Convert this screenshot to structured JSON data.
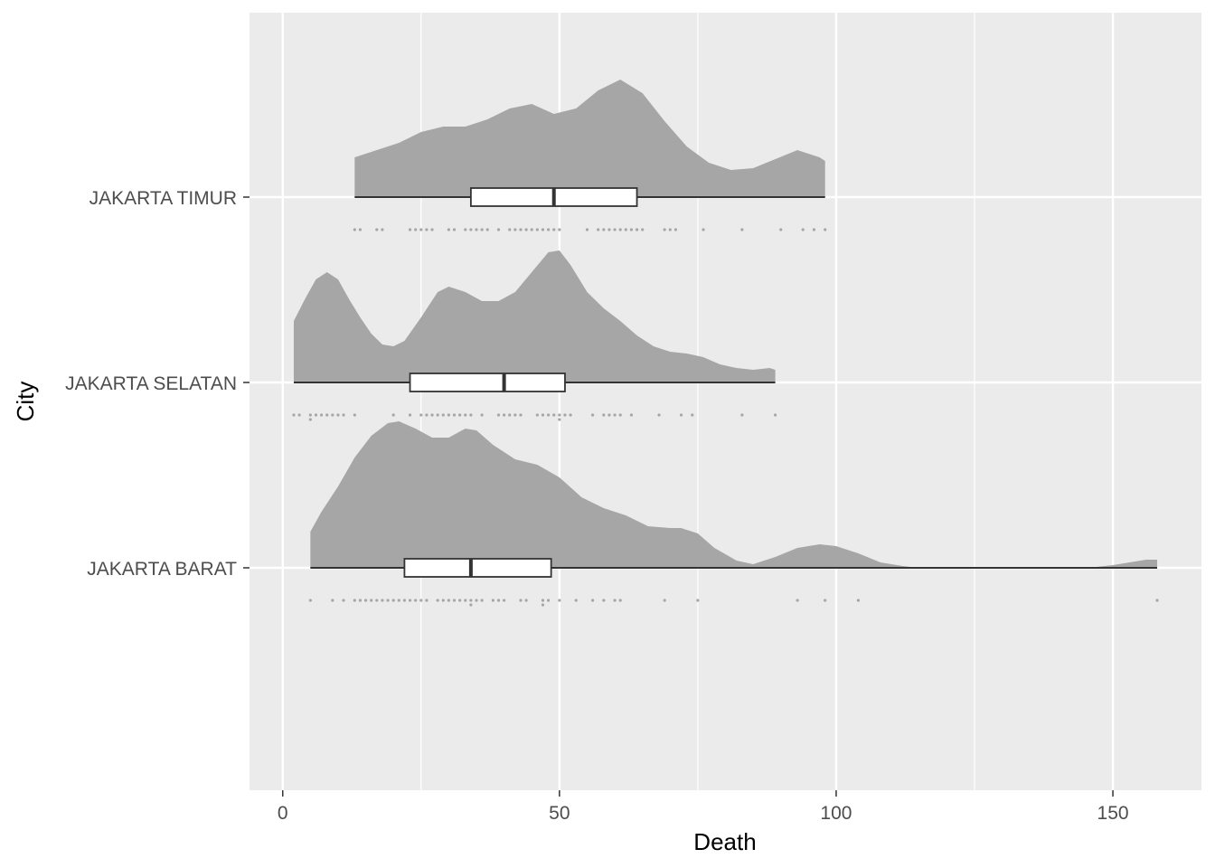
{
  "chart_data": {
    "type": "raincloud",
    "xlabel": "Death",
    "ylabel": "City",
    "xlim": [
      -6,
      166
    ],
    "x_ticks": [
      0,
      50,
      100,
      150
    ],
    "grid": true,
    "colors": {
      "panel": "#ebebeb",
      "grid": "#ffffff",
      "density_fill": "#a6a6a6",
      "points": "#a6a6a6",
      "box_line": "#333333",
      "box_fill": "#ffffff"
    },
    "categories": [
      "JAKARTA BARAT",
      "JAKARTA SELATAN",
      "JAKARTA TIMUR"
    ],
    "series": [
      {
        "category": "JAKARTA TIMUR",
        "range": [
          13,
          98
        ],
        "box": {
          "q1": 34,
          "median": 49,
          "q3": 64
        },
        "density": {
          "x": [
            13,
            17,
            21,
            25,
            29,
            33,
            37,
            41,
            45,
            49,
            53,
            57,
            61,
            65,
            69,
            73,
            77,
            81,
            85,
            89,
            93,
            97,
            98
          ],
          "y": [
            0.44,
            0.52,
            0.6,
            0.72,
            0.78,
            0.78,
            0.86,
            0.98,
            1.03,
            0.92,
            0.98,
            1.18,
            1.3,
            1.15,
            0.84,
            0.56,
            0.38,
            0.3,
            0.32,
            0.42,
            0.52,
            0.44,
            0.4
          ]
        },
        "points": [
          13,
          14,
          17,
          18,
          23,
          24,
          25,
          26,
          27,
          30,
          31,
          33,
          34,
          35,
          36,
          37,
          39,
          41,
          42,
          43,
          44,
          45,
          46,
          47,
          48,
          49,
          50,
          55,
          57,
          58,
          59,
          60,
          61,
          62,
          63,
          64,
          65,
          69,
          70,
          71,
          76,
          83,
          90,
          94,
          96,
          98
        ]
      },
      {
        "category": "JAKARTA SELATAN",
        "range": [
          2,
          89
        ],
        "box": {
          "q1": 23,
          "median": 40,
          "q3": 51
        },
        "density": {
          "x": [
            2,
            4,
            6,
            8,
            10,
            12,
            14,
            16,
            18,
            20,
            22,
            25,
            28,
            30,
            33,
            36,
            39,
            42,
            45,
            48,
            50,
            52,
            55,
            58,
            61,
            64,
            67,
            70,
            73,
            76,
            79,
            82,
            85,
            88,
            89
          ],
          "y": [
            0.68,
            0.92,
            1.14,
            1.22,
            1.14,
            0.92,
            0.72,
            0.54,
            0.42,
            0.4,
            0.46,
            0.72,
            1.0,
            1.06,
            1.0,
            0.9,
            0.9,
            1.0,
            1.22,
            1.44,
            1.46,
            1.3,
            1.0,
            0.82,
            0.68,
            0.52,
            0.4,
            0.34,
            0.32,
            0.28,
            0.2,
            0.16,
            0.14,
            0.16,
            0.14
          ]
        },
        "points": [
          2,
          3,
          5,
          5,
          6,
          7,
          8,
          9,
          10,
          11,
          13,
          20,
          23,
          25,
          26,
          27,
          28,
          29,
          30,
          31,
          32,
          33,
          34,
          36,
          39,
          40,
          41,
          42,
          43,
          46,
          47,
          48,
          49,
          50,
          50,
          51,
          52,
          56,
          58,
          59,
          60,
          61,
          63,
          68,
          72,
          74,
          83,
          89
        ]
      },
      {
        "category": "JAKARTA BARAT",
        "range": [
          5,
          158
        ],
        "box": {
          "q1": 22,
          "median": 34,
          "q3": 48.5
        },
        "density": {
          "x": [
            5,
            7,
            10,
            13,
            16,
            19,
            21,
            24,
            27,
            30,
            33,
            35,
            38,
            42,
            46,
            50,
            54,
            58,
            62,
            66,
            70,
            72,
            75,
            78,
            82,
            85,
            89,
            93,
            97,
            100,
            104,
            108,
            112,
            115,
            116,
            146,
            147,
            150,
            153,
            156,
            158
          ],
          "y": [
            0.4,
            0.62,
            0.9,
            1.22,
            1.46,
            1.6,
            1.62,
            1.54,
            1.44,
            1.44,
            1.54,
            1.52,
            1.36,
            1.2,
            1.14,
            1.0,
            0.78,
            0.66,
            0.58,
            0.46,
            0.44,
            0.44,
            0.38,
            0.22,
            0.08,
            0.04,
            0.12,
            0.22,
            0.26,
            0.24,
            0.16,
            0.06,
            0.02,
            0.0,
            0.0,
            0.0,
            0.01,
            0.03,
            0.06,
            0.09,
            0.09
          ]
        },
        "points": [
          5,
          9,
          11,
          13,
          14,
          15,
          16,
          17,
          18,
          19,
          20,
          21,
          22,
          23,
          24,
          25,
          26,
          28,
          29,
          30,
          31,
          32,
          33,
          34,
          34,
          35,
          36,
          38,
          39,
          40,
          43,
          44,
          47,
          47,
          48,
          50,
          53,
          56,
          58,
          60,
          61,
          69,
          75,
          93,
          98,
          104,
          158
        ]
      }
    ]
  }
}
